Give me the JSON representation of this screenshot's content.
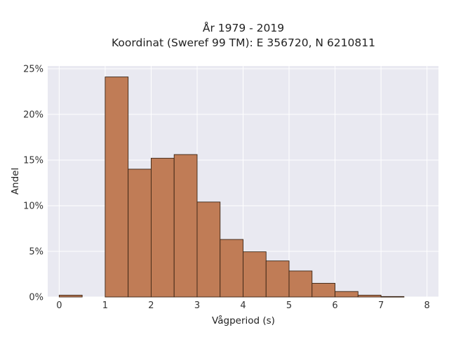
{
  "chart_data": {
    "type": "bar",
    "title": "År 1979 - 2019",
    "subtitle": "Koordinat (Sweref 99 TM): E 356720, N 6210811",
    "xlabel": "Vågperiod (s)",
    "ylabel": "Andel",
    "x_ticks": [
      "0",
      "1",
      "2",
      "3",
      "4",
      "5",
      "6",
      "7",
      "8"
    ],
    "y_ticks": [
      "0%",
      "5%",
      "10%",
      "15%",
      "20%",
      "25%"
    ],
    "xlim": [
      -0.25,
      8.25
    ],
    "ylim": [
      0,
      25.3
    ],
    "bin_width": 0.5,
    "bins": [
      {
        "x_start": 0.0,
        "value": 0.2
      },
      {
        "x_start": 0.5,
        "value": 0.0
      },
      {
        "x_start": 1.0,
        "value": 24.1
      },
      {
        "x_start": 1.5,
        "value": 14.0
      },
      {
        "x_start": 2.0,
        "value": 15.2
      },
      {
        "x_start": 2.5,
        "value": 15.6
      },
      {
        "x_start": 3.0,
        "value": 10.4
      },
      {
        "x_start": 3.5,
        "value": 6.3
      },
      {
        "x_start": 4.0,
        "value": 4.95
      },
      {
        "x_start": 4.5,
        "value": 3.95
      },
      {
        "x_start": 5.0,
        "value": 2.85
      },
      {
        "x_start": 5.5,
        "value": 1.5
      },
      {
        "x_start": 6.0,
        "value": 0.6
      },
      {
        "x_start": 6.5,
        "value": 0.2
      },
      {
        "x_start": 7.0,
        "value": 0.05
      }
    ],
    "grid": true,
    "colors": {
      "bar": "#c07c56",
      "plot_bg": "#e9e9f1",
      "grid": "#ffffff"
    }
  }
}
